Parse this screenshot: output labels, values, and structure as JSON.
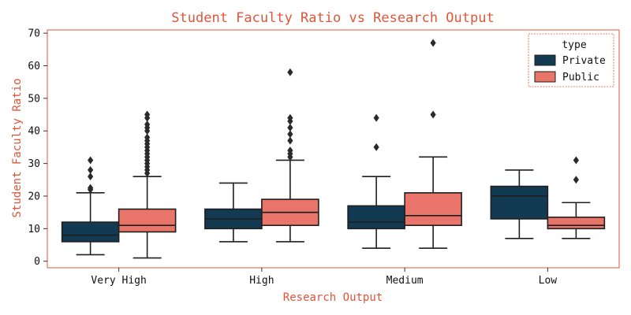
{
  "chart_data": {
    "type": "box",
    "title": "Student Faculty Ratio vs Research Output",
    "xlabel": "Research Output",
    "ylabel": "Student Faculty Ratio",
    "ylim": [
      -2,
      71
    ],
    "yticks": [
      0,
      10,
      20,
      30,
      40,
      50,
      60,
      70
    ],
    "categories": [
      "Very High",
      "High",
      "Medium",
      "Low"
    ],
    "legend": {
      "title": "type",
      "position": "top-right"
    },
    "grid": false,
    "colors": {
      "accent": "#e0553a",
      "Private": "#123a52",
      "Public": "#e8746a",
      "line": "#1f1f1f"
    },
    "series": [
      {
        "name": "Private",
        "boxes": [
          {
            "min": 2,
            "q1": 6,
            "median": 8,
            "q3": 12,
            "max": 21,
            "outliers": [
              22,
              22.5,
              26,
              28,
              31
            ]
          },
          {
            "min": 6,
            "q1": 10,
            "median": 13,
            "q3": 16,
            "max": 24,
            "outliers": []
          },
          {
            "min": 4,
            "q1": 10,
            "median": 12,
            "q3": 17,
            "max": 26,
            "outliers": [
              35,
              44
            ]
          },
          {
            "min": 7,
            "q1": 13,
            "median": 20,
            "q3": 23,
            "max": 28,
            "outliers": []
          }
        ]
      },
      {
        "name": "Public",
        "boxes": [
          {
            "min": 1,
            "q1": 9,
            "median": 11,
            "q3": 16,
            "max": 26,
            "outliers": [
              27,
              28,
              29,
              30,
              31,
              32,
              33,
              34,
              35,
              36,
              37,
              38,
              40,
              41,
              42,
              44,
              45
            ]
          },
          {
            "min": 6,
            "q1": 11,
            "median": 15,
            "q3": 19,
            "max": 31,
            "outliers": [
              32,
              33,
              34,
              37,
              39,
              41,
              43,
              44,
              58
            ]
          },
          {
            "min": 4,
            "q1": 11,
            "median": 14,
            "q3": 21,
            "max": 32,
            "outliers": [
              45,
              67
            ]
          },
          {
            "min": 7,
            "q1": 10,
            "median": 11,
            "q3": 13.5,
            "max": 18,
            "outliers": [
              25,
              31
            ]
          }
        ]
      }
    ]
  }
}
